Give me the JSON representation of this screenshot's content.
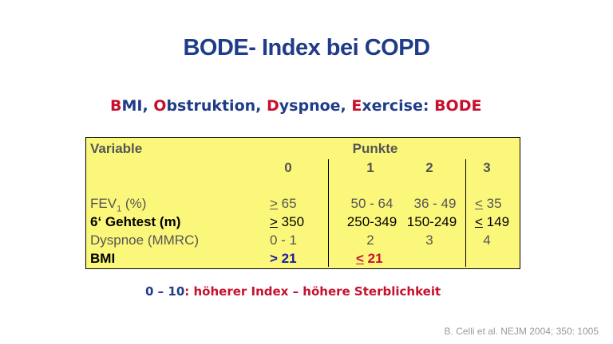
{
  "title": "BODE- Index bei COPD",
  "subtitle": {
    "b1": "B",
    "t1": "MI, ",
    "b2": "O",
    "t2": "bstruktion, ",
    "b3": "D",
    "t3": "yspnoe, ",
    "b4": "E",
    "t4": "xercise: ",
    "bode": "BODE"
  },
  "table": {
    "header_variable": "Variable",
    "header_punkte": "Punkte",
    "points": [
      "0",
      "1",
      "2",
      "3"
    ],
    "rows": [
      {
        "label": "FEV",
        "sub": "1",
        "label_suffix": " (%)",
        "op0": ">",
        "v0": " 65",
        "v1": "50 - 64",
        "v2": "36 - 49",
        "op3": "<",
        "v3": " 35"
      },
      {
        "label": "6‘ Gehtest (m)",
        "op0": ">",
        "v0": " 350",
        "v1": "250-349",
        "v2": "150-249",
        "op3": "<",
        "v3": " 149"
      },
      {
        "label": "Dyspnoe (MMRC)",
        "v0": "0 - 1",
        "v1": "2",
        "v2": "3",
        "v3": "4"
      },
      {
        "label": "BMI",
        "v0": "> 21",
        "op1": "<",
        "v1": " 21"
      }
    ]
  },
  "footer": {
    "range": "0 – 10",
    "text": ": höherer Index – höhere Sterblichkeit"
  },
  "citation": "B. Celli et al. NEJM 2004; 350: 1005",
  "colors": {
    "navy": "#1f3c88",
    "red": "#c8102e",
    "yellow": "#fbf77b"
  }
}
